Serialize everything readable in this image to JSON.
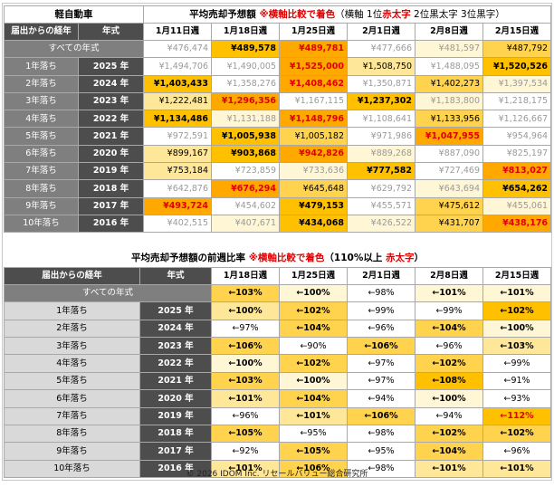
{
  "table1": {
    "category": "軽自動車",
    "title_main": "平均売却予想額 ",
    "title_red": "※横軸比較で着色",
    "title_note_a": "（横軸 1位",
    "title_note_b": "赤太字",
    "title_note_c": " 2位黒太字 3位黒字）",
    "row_header": "届出からの経年",
    "year_header": "年式",
    "weeks": [
      "1月11日週",
      "1月18日週",
      "1月25日週",
      "2月1日週",
      "2月8日週",
      "2月15日週"
    ],
    "all_label": "すべての年式",
    "all_values": [
      "¥476,474",
      "¥489,578",
      "¥489,781",
      "¥477,666",
      "¥481,597",
      "¥487,792"
    ],
    "rows": [
      {
        "age": "1年落ち",
        "year": "2025 年",
        "values": [
          "¥1,494,706",
          "¥1,490,005",
          "¥1,525,000",
          "¥1,508,750",
          "¥1,488,095",
          "¥1,520,526"
        ]
      },
      {
        "age": "2年落ち",
        "year": "2024 年",
        "values": [
          "¥1,403,433",
          "¥1,358,276",
          "¥1,408,462",
          "¥1,350,871",
          "¥1,402,273",
          "¥1,397,534"
        ]
      },
      {
        "age": "3年落ち",
        "year": "2023 年",
        "values": [
          "¥1,222,481",
          "¥1,296,356",
          "¥1,167,115",
          "¥1,237,302",
          "¥1,183,800",
          "¥1,218,175"
        ]
      },
      {
        "age": "4年落ち",
        "year": "2022 年",
        "values": [
          "¥1,134,486",
          "¥1,131,188",
          "¥1,148,796",
          "¥1,108,641",
          "¥1,133,956",
          "¥1,126,667"
        ]
      },
      {
        "age": "5年落ち",
        "year": "2021 年",
        "values": [
          "¥972,591",
          "¥1,005,938",
          "¥1,005,182",
          "¥971,986",
          "¥1,047,955",
          "¥954,964"
        ]
      },
      {
        "age": "6年落ち",
        "year": "2020 年",
        "values": [
          "¥899,167",
          "¥903,868",
          "¥942,826",
          "¥889,268",
          "¥887,090",
          "¥825,197"
        ]
      },
      {
        "age": "7年落ち",
        "year": "2019 年",
        "values": [
          "¥753,184",
          "¥723,859",
          "¥733,636",
          "¥777,582",
          "¥727,469",
          "¥813,027"
        ]
      },
      {
        "age": "8年落ち",
        "year": "2018 年",
        "values": [
          "¥642,876",
          "¥676,294",
          "¥645,648",
          "¥629,792",
          "¥643,694",
          "¥654,262"
        ]
      },
      {
        "age": "9年落ち",
        "year": "2017 年",
        "values": [
          "¥493,724",
          "¥454,602",
          "¥479,153",
          "¥455,571",
          "¥475,612",
          "¥455,061"
        ]
      },
      {
        "age": "10年落ち",
        "year": "2016 年",
        "values": [
          "¥402,515",
          "¥407,671",
          "¥434,068",
          "¥426,522",
          "¥431,707",
          "¥438,176"
        ]
      }
    ]
  },
  "table2": {
    "title_main": "平均売却予想額の前週比率 ",
    "title_red": "※横軸比較で着色",
    "title_note_a": "（110%以上 ",
    "title_note_b": "赤太字",
    "title_note_c": "）",
    "row_header": "届出からの経年",
    "year_header": "年式",
    "weeks": [
      "1月18日週",
      "1月25日週",
      "2月1日週",
      "2月8日週",
      "2月15日週"
    ],
    "all_label": "すべての年式",
    "all_values": [
      "←103%",
      "←100%",
      "←98%",
      "←101%",
      "←101%"
    ],
    "rows": [
      {
        "age": "1年落ち",
        "year": "2025 年",
        "values": [
          "←100%",
          "←102%",
          "←99%",
          "←99%",
          "←102%"
        ]
      },
      {
        "age": "2年落ち",
        "year": "2024 年",
        "values": [
          "←97%",
          "←104%",
          "←96%",
          "←104%",
          "←100%"
        ]
      },
      {
        "age": "3年落ち",
        "year": "2023 年",
        "values": [
          "←106%",
          "←90%",
          "←106%",
          "←96%",
          "←103%"
        ]
      },
      {
        "age": "4年落ち",
        "year": "2022 年",
        "values": [
          "←100%",
          "←102%",
          "←97%",
          "←102%",
          "←99%"
        ]
      },
      {
        "age": "5年落ち",
        "year": "2021 年",
        "values": [
          "←103%",
          "←100%",
          "←97%",
          "←108%",
          "←91%"
        ]
      },
      {
        "age": "6年落ち",
        "year": "2020 年",
        "values": [
          "←101%",
          "←104%",
          "←94%",
          "←100%",
          "←93%"
        ]
      },
      {
        "age": "7年落ち",
        "year": "2019 年",
        "values": [
          "←96%",
          "←101%",
          "←106%",
          "←94%",
          "←112%"
        ]
      },
      {
        "age": "8年落ち",
        "year": "2018 年",
        "values": [
          "←105%",
          "←95%",
          "←98%",
          "←102%",
          "←102%"
        ]
      },
      {
        "age": "9年落ち",
        "year": "2017 年",
        "values": [
          "←92%",
          "←105%",
          "←95%",
          "←104%",
          "←96%"
        ]
      },
      {
        "age": "10年落ち",
        "year": "2016 年",
        "values": [
          "←101%",
          "←106%",
          "←98%",
          "←101%",
          "←101%"
        ]
      }
    ]
  },
  "footer": "© 2026 IDOM Inc. リセールバリュー総合研究所",
  "colors": {
    "header_dark": "#4d4d4d",
    "header_mid": "#7f7f7f",
    "highlight_strong": "#ffa800",
    "highlight": "#ffc000",
    "highlight_light": "#ffe799",
    "red_text": "#e00000"
  }
}
